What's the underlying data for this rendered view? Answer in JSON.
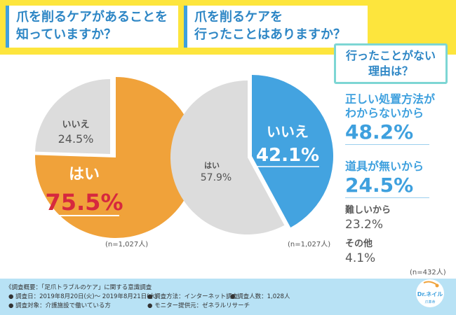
{
  "header": {
    "q1": [
      "爪を削るケアがあることを",
      "知っていますか？"
    ],
    "q2": [
      "爪を削るケアを",
      "行ったことはありますか？"
    ],
    "reason_title": [
      "行ったことがない",
      "理由は？"
    ]
  },
  "chart_data": [
    {
      "type": "pie",
      "title": "爪を削るケアがあることを知っていますか？",
      "slices": [
        {
          "label": "はい",
          "value": 75.5,
          "display": "75.5%"
        },
        {
          "label": "いいえ",
          "value": 24.5,
          "display": "24.5%"
        }
      ],
      "colors": [
        "#f0a23a",
        "#dcdcdc"
      ],
      "note": "(n=1,027人)"
    },
    {
      "type": "pie",
      "title": "爪を削るケアを行ったことはありますか？",
      "slices": [
        {
          "label": "いいえ",
          "value": 42.1,
          "display": "42.1%"
        },
        {
          "label": "はい",
          "value": 57.9,
          "display": "57.9%"
        }
      ],
      "colors": [
        "#43a3e0",
        "#dcdcdc"
      ],
      "note": "(n=1,027人)"
    },
    {
      "type": "table",
      "title": "行ったことがない理由は？",
      "rows": [
        {
          "label": "正しい処置方法がわからないから",
          "value": 48.2
        },
        {
          "label": "道具が無いから",
          "value": 24.5
        },
        {
          "label": "難しいから",
          "value": 23.2
        },
        {
          "label": "その他",
          "value": 4.1
        }
      ],
      "note": "(n=432人)"
    }
  ],
  "reasons": {
    "r1_label_lines": [
      "正しい処置方法が",
      "わからないから"
    ],
    "r1_value": "48.2%",
    "r2_label": "道具が無いから",
    "r2_value": "24.5%",
    "r3_label": "難しいから",
    "r3_value": "23.2%",
    "r4_label": "その他",
    "r4_value": "4.1%",
    "note": "(n=432人)"
  },
  "footer": {
    "line1": "《調査概要：「足爪トラブルのケア」に関する意識調査",
    "line2a": "● 調査日：2019年8月20日(火)～ 2019年8月21日(水)",
    "line2b": "● 調査方法：インターネット調査",
    "line2c": "● 調査人数：1,028人",
    "line3a": "● 調査対象：介護施設で働いている方",
    "line3b": "● モニター提供元：ゼネラルリサーチ"
  },
  "logo": {
    "text": "Dr.ネイル",
    "sub": "爪革命"
  },
  "colors": {
    "header_bg": "#fde53d",
    "title_blue": "#2d86c5",
    "orange": "#f0a23a",
    "blue": "#43a3e0",
    "gray": "#dcdcdc",
    "footer_bg": "#b8e2f5",
    "teal_border": "#7dd6d4"
  }
}
